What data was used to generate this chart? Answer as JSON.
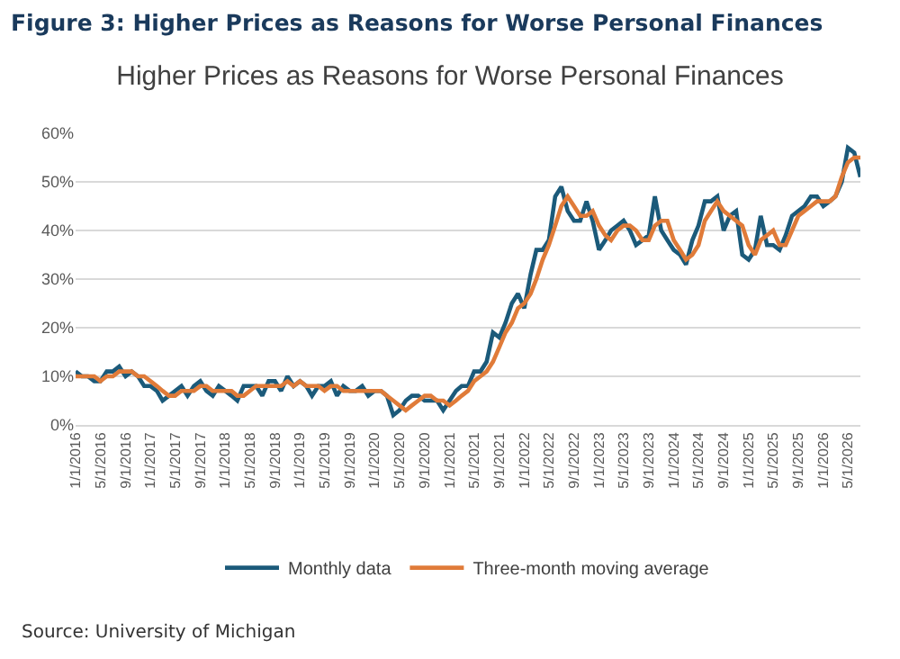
{
  "chart_data": {
    "type": "line",
    "title": "Figure 3: Higher Prices as Reasons for Worse Personal Finances",
    "subtitle": "Higher Prices as Reasons for Worse Personal Finances",
    "annotations": [
      "Source: University of Michigan"
    ],
    "x": [
      "2016-01",
      "2016-02",
      "2016-03",
      "2016-04",
      "2016-05",
      "2016-06",
      "2016-07",
      "2016-08",
      "2016-09",
      "2016-10",
      "2016-11",
      "2016-12",
      "2017-01",
      "2017-02",
      "2017-03",
      "2017-04",
      "2017-05",
      "2017-06",
      "2017-07",
      "2017-08",
      "2017-09",
      "2017-10",
      "2017-11",
      "2017-12",
      "2018-01",
      "2018-02",
      "2018-03",
      "2018-04",
      "2018-05",
      "2018-06",
      "2018-07",
      "2018-08",
      "2018-09",
      "2018-10",
      "2018-11",
      "2018-12",
      "2019-01",
      "2019-02",
      "2019-03",
      "2019-04",
      "2019-05",
      "2019-06",
      "2019-07",
      "2019-08",
      "2019-09",
      "2019-10",
      "2019-11",
      "2019-12",
      "2020-01",
      "2020-02",
      "2020-03",
      "2020-04",
      "2020-05",
      "2020-06",
      "2020-07",
      "2020-08",
      "2020-09",
      "2020-10",
      "2020-11",
      "2020-12",
      "2021-01",
      "2021-02",
      "2021-03",
      "2021-04",
      "2021-05",
      "2021-06",
      "2021-07",
      "2021-08",
      "2021-09",
      "2021-10",
      "2021-11",
      "2021-12",
      "2022-01",
      "2022-02",
      "2022-03",
      "2022-04",
      "2022-05",
      "2022-06",
      "2022-07",
      "2022-08",
      "2022-09",
      "2022-10",
      "2022-11",
      "2022-12",
      "2023-01",
      "2023-02",
      "2023-03",
      "2023-04",
      "2023-05",
      "2023-06",
      "2023-07",
      "2023-08",
      "2023-09",
      "2023-10",
      "2023-11",
      "2023-12",
      "2024-01",
      "2024-02",
      "2024-03",
      "2024-04",
      "2024-05",
      "2024-06",
      "2024-07",
      "2024-08",
      "2024-09",
      "2024-10",
      "2024-11",
      "2024-12",
      "2025-01",
      "2025-02",
      "2025-03",
      "2025-04",
      "2025-05",
      "2025-06",
      "2025-07",
      "2025-08",
      "2025-09",
      "2025-10",
      "2025-11",
      "2025-12",
      "2026-01",
      "2026-02",
      "2026-03",
      "2026-04",
      "2026-05",
      "2026-06",
      "2026-07"
    ],
    "series": [
      {
        "name": "Monthly data",
        "color": "#1b5a7a",
        "values": [
          11,
          10,
          10,
          9,
          9,
          11,
          11,
          12,
          10,
          11,
          10,
          8,
          8,
          7,
          5,
          6,
          7,
          8,
          6,
          8,
          9,
          7,
          6,
          8,
          7,
          6,
          5,
          8,
          8,
          8,
          6,
          9,
          9,
          7,
          10,
          8,
          9,
          8,
          6,
          8,
          8,
          9,
          6,
          8,
          7,
          7,
          8,
          6,
          7,
          7,
          6,
          2,
          3,
          5,
          6,
          6,
          5,
          5,
          5,
          3,
          5,
          7,
          8,
          8,
          11,
          11,
          13,
          19,
          18,
          21,
          25,
          27,
          24,
          31,
          36,
          36,
          38,
          47,
          49,
          44,
          42,
          42,
          46,
          42,
          36,
          38,
          40,
          41,
          42,
          40,
          37,
          38,
          39,
          47,
          40,
          38,
          36,
          35,
          33,
          38,
          41,
          46,
          46,
          47,
          40,
          43,
          44,
          35,
          34,
          36,
          43,
          37,
          37,
          36,
          39,
          43,
          44,
          45,
          47,
          47,
          45,
          46,
          47,
          50,
          57,
          56,
          51
        ]
      },
      {
        "name": "Three-month moving average",
        "color": "#e07b39",
        "values": [
          10,
          10,
          10,
          10,
          9,
          10,
          10,
          11,
          11,
          11,
          10,
          10,
          9,
          8,
          7,
          6,
          6,
          7,
          7,
          7,
          8,
          8,
          7,
          7,
          7,
          7,
          6,
          6,
          7,
          8,
          8,
          8,
          8,
          8,
          9,
          8,
          9,
          8,
          8,
          8,
          7,
          8,
          8,
          7,
          7,
          7,
          7,
          7,
          7,
          7,
          6,
          5,
          4,
          3,
          4,
          5,
          6,
          6,
          5,
          5,
          4,
          5,
          6,
          7,
          9,
          10,
          11,
          13,
          16,
          19,
          21,
          24,
          25,
          27,
          30,
          34,
          37,
          41,
          45,
          47,
          45,
          43,
          43,
          44,
          41,
          39,
          38,
          40,
          41,
          41,
          40,
          38,
          38,
          41,
          42,
          42,
          38,
          36,
          34,
          35,
          37,
          42,
          44,
          46,
          44,
          43,
          42,
          41,
          37,
          35,
          38,
          39,
          40,
          37,
          37,
          40,
          43,
          44,
          45,
          46,
          46,
          46,
          47,
          51,
          54,
          55,
          55
        ]
      }
    ],
    "xlim": [
      "2016-01",
      "2026-07"
    ],
    "xticks": [
      {
        "value": "2016-01",
        "label": "1/1/2016"
      },
      {
        "value": "2016-05",
        "label": "5/1/2016"
      },
      {
        "value": "2016-09",
        "label": "9/1/2016"
      },
      {
        "value": "2017-01",
        "label": "1/1/2017"
      },
      {
        "value": "2017-05",
        "label": "5/1/2017"
      },
      {
        "value": "2017-09",
        "label": "9/1/2017"
      },
      {
        "value": "2018-01",
        "label": "1/1/2018"
      },
      {
        "value": "2018-05",
        "label": "5/1/2018"
      },
      {
        "value": "2018-09",
        "label": "9/1/2018"
      },
      {
        "value": "2019-01",
        "label": "1/1/2019"
      },
      {
        "value": "2019-05",
        "label": "5/1/2019"
      },
      {
        "value": "2019-09",
        "label": "9/1/2019"
      },
      {
        "value": "2020-01",
        "label": "1/1/2020"
      },
      {
        "value": "2020-05",
        "label": "5/1/2020"
      },
      {
        "value": "2020-09",
        "label": "9/1/2020"
      },
      {
        "value": "2021-01",
        "label": "1/1/2021"
      },
      {
        "value": "2021-05",
        "label": "5/1/2021"
      },
      {
        "value": "2021-09",
        "label": "9/1/2021"
      },
      {
        "value": "2022-01",
        "label": "1/1/2022"
      },
      {
        "value": "2022-05",
        "label": "5/1/2022"
      },
      {
        "value": "2022-09",
        "label": "9/1/2022"
      },
      {
        "value": "2023-01",
        "label": "1/1/2023"
      },
      {
        "value": "2023-05",
        "label": "5/1/2023"
      },
      {
        "value": "2023-09",
        "label": "9/1/2023"
      },
      {
        "value": "2024-01",
        "label": "1/1/2024"
      },
      {
        "value": "2024-05",
        "label": "5/1/2024"
      },
      {
        "value": "2024-09",
        "label": "9/1/2024"
      },
      {
        "value": "2025-01",
        "label": "1/1/2025"
      },
      {
        "value": "2025-05",
        "label": "5/1/2025"
      },
      {
        "value": "2025-09",
        "label": "9/1/2025"
      },
      {
        "value": "2026-01",
        "label": "1/1/2026"
      },
      {
        "value": "2026-05",
        "label": "5/1/2026"
      }
    ],
    "ylim": [
      0,
      60
    ],
    "yticks": [
      {
        "value": 0,
        "label": "0%"
      },
      {
        "value": 10,
        "label": "10%"
      },
      {
        "value": 20,
        "label": "20%"
      },
      {
        "value": 30,
        "label": "30%"
      },
      {
        "value": 40,
        "label": "40%"
      },
      {
        "value": 50,
        "label": "50%"
      },
      {
        "value": 60,
        "label": "60%"
      }
    ],
    "grid": "y",
    "legend": "bottom",
    "marker": "none",
    "line_style": "solid"
  }
}
